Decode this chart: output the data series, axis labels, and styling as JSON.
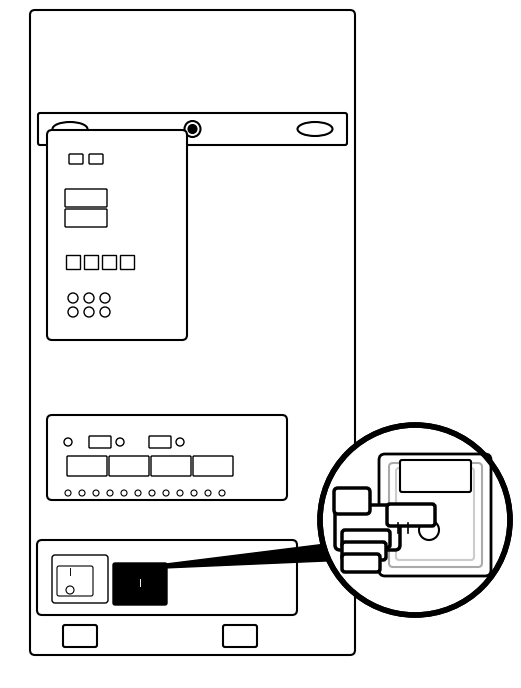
{
  "bg_color": "#ffffff",
  "line_color": "#000000",
  "light_gray": "#cccccc",
  "gray": "#888888",
  "fig_width": 5.21,
  "fig_height": 6.88,
  "dpi": 100
}
